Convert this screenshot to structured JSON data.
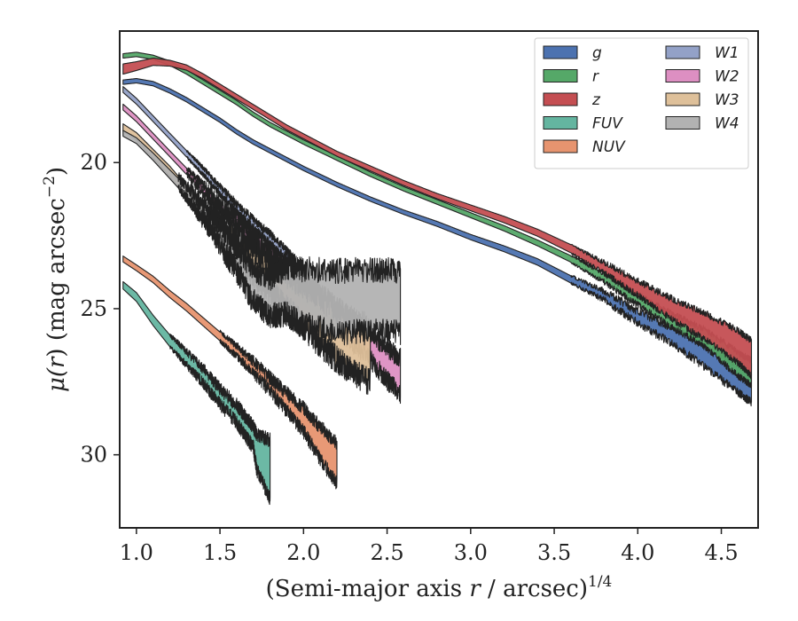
{
  "chart_data": {
    "type": "area",
    "xlabel": "(Semi-major axis r / arcsec)",
    "xlabel_main": "(Semi-major axis ",
    "xlabel_var": "r",
    "xlabel_rest": " / arcsec)",
    "xlabel_exp": "1/4",
    "ylabel_pre": "μ(",
    "ylabel_var": "r",
    "ylabel_post": ") (mag arcsec",
    "ylabel_exp": "−2",
    "ylabel_close": ")",
    "xlim": [
      0.9,
      4.72
    ],
    "ylim": [
      32.5,
      15.5
    ],
    "y_inverted": true,
    "xticks": [
      1.0,
      1.5,
      2.0,
      2.5,
      3.0,
      3.5,
      4.0,
      4.5
    ],
    "xtick_labels": [
      "1.0",
      "1.5",
      "2.0",
      "2.5",
      "3.0",
      "3.5",
      "4.0",
      "4.5"
    ],
    "yticks": [
      20,
      25,
      30
    ],
    "ytick_labels": [
      "20",
      "25",
      "30"
    ],
    "legend_position": "top-right",
    "legend_columns": 2,
    "series": [
      {
        "name": "g",
        "color": "#4c72b0",
        "noise": 0.15,
        "noise_start": 3.6,
        "x": [
          0.92,
          1.0,
          1.1,
          1.2,
          1.3,
          1.4,
          1.5,
          1.6,
          1.7,
          1.8,
          1.9,
          2.0,
          2.2,
          2.4,
          2.6,
          2.8,
          3.0,
          3.2,
          3.4,
          3.6,
          3.8,
          4.0,
          4.2,
          4.4,
          4.6,
          4.68
        ],
        "y": [
          17.25,
          17.2,
          17.3,
          17.55,
          17.85,
          18.2,
          18.55,
          18.95,
          19.3,
          19.6,
          19.9,
          20.2,
          20.75,
          21.25,
          21.7,
          22.1,
          22.55,
          22.95,
          23.4,
          24.0,
          24.55,
          25.3,
          25.9,
          26.6,
          27.4,
          27.7
        ],
        "w": [
          0.15,
          0.15,
          0.15,
          0.15,
          0.15,
          0.15,
          0.15,
          0.15,
          0.15,
          0.15,
          0.15,
          0.15,
          0.15,
          0.15,
          0.15,
          0.17,
          0.18,
          0.2,
          0.22,
          0.25,
          0.3,
          0.4,
          0.55,
          0.75,
          0.95,
          1.0
        ]
      },
      {
        "name": "r",
        "color": "#55a868",
        "noise": 0.12,
        "noise_start": 3.6,
        "x": [
          0.92,
          1.0,
          1.1,
          1.2,
          1.3,
          1.4,
          1.5,
          1.6,
          1.7,
          1.8,
          1.9,
          2.0,
          2.2,
          2.4,
          2.6,
          2.8,
          3.0,
          3.2,
          3.4,
          3.6,
          3.8,
          4.0,
          4.2,
          4.4,
          4.6,
          4.68
        ],
        "y": [
          16.35,
          16.3,
          16.4,
          16.6,
          16.9,
          17.25,
          17.6,
          17.95,
          18.35,
          18.7,
          19.0,
          19.3,
          19.85,
          20.4,
          20.9,
          21.35,
          21.8,
          22.25,
          22.75,
          23.3,
          23.95,
          24.7,
          25.4,
          26.0,
          26.9,
          27.2
        ],
        "w": [
          0.15,
          0.15,
          0.15,
          0.15,
          0.15,
          0.15,
          0.15,
          0.15,
          0.15,
          0.15,
          0.15,
          0.15,
          0.15,
          0.15,
          0.15,
          0.16,
          0.17,
          0.18,
          0.2,
          0.22,
          0.28,
          0.35,
          0.45,
          0.6,
          0.8,
          0.85
        ]
      },
      {
        "name": "z",
        "color": "#c44e52",
        "noise": 0.12,
        "noise_start": 3.6,
        "x": [
          0.92,
          1.0,
          1.1,
          1.2,
          1.3,
          1.4,
          1.5,
          1.6,
          1.7,
          1.8,
          1.9,
          2.0,
          2.2,
          2.4,
          2.6,
          2.8,
          3.0,
          3.2,
          3.4,
          3.6,
          3.8,
          4.0,
          4.2,
          4.4,
          4.6,
          4.68
        ],
        "y": [
          16.8,
          16.7,
          16.55,
          16.6,
          16.75,
          17.05,
          17.4,
          17.75,
          18.1,
          18.45,
          18.8,
          19.1,
          19.7,
          20.2,
          20.7,
          21.15,
          21.55,
          21.95,
          22.4,
          22.95,
          23.6,
          24.3,
          25.0,
          25.6,
          26.3,
          26.7
        ],
        "w": [
          0.35,
          0.3,
          0.25,
          0.2,
          0.18,
          0.17,
          0.17,
          0.17,
          0.17,
          0.17,
          0.17,
          0.17,
          0.17,
          0.17,
          0.17,
          0.18,
          0.2,
          0.22,
          0.24,
          0.28,
          0.35,
          0.5,
          0.7,
          0.9,
          1.1,
          1.2
        ]
      },
      {
        "name": "FUV",
        "color": "#64b5a0",
        "noise": 0.25,
        "noise_start": 1.2,
        "x": [
          0.92,
          1.0,
          1.1,
          1.2,
          1.3,
          1.4,
          1.5,
          1.6,
          1.65,
          1.7,
          1.72,
          1.8
        ],
        "y": [
          24.2,
          24.6,
          25.4,
          26.1,
          26.7,
          27.3,
          28.0,
          28.6,
          29.0,
          29.4,
          29.9,
          30.5
        ],
        "w": [
          0.25,
          0.3,
          0.35,
          0.4,
          0.45,
          0.5,
          0.55,
          0.6,
          0.65,
          0.7,
          1.2,
          2.0
        ]
      },
      {
        "name": "NUV",
        "color": "#e7946f",
        "noise": 0.25,
        "noise_start": 1.5,
        "x": [
          0.92,
          1.0,
          1.1,
          1.2,
          1.3,
          1.4,
          1.5,
          1.6,
          1.7,
          1.8,
          1.9,
          2.0,
          2.1,
          2.2
        ],
        "y": [
          23.3,
          23.6,
          24.0,
          24.5,
          24.95,
          25.45,
          25.95,
          26.45,
          27.0,
          27.6,
          28.2,
          28.8,
          29.6,
          30.3
        ],
        "w": [
          0.2,
          0.2,
          0.22,
          0.24,
          0.26,
          0.28,
          0.3,
          0.35,
          0.4,
          0.45,
          0.6,
          0.8,
          1.1,
          1.4
        ]
      },
      {
        "name": "W1",
        "color": "#93a1c7",
        "noise": 0.15,
        "noise_start": 1.3,
        "x": [
          0.92,
          1.0,
          1.1,
          1.2,
          1.3,
          1.4,
          1.5,
          1.6,
          1.7,
          1.8,
          1.9,
          1.95
        ],
        "y": [
          17.5,
          17.9,
          18.5,
          19.1,
          19.7,
          20.3,
          20.95,
          21.55,
          22.1,
          22.6,
          23.2,
          23.5
        ],
        "w": [
          0.2,
          0.2,
          0.2,
          0.2,
          0.22,
          0.24,
          0.26,
          0.28,
          0.3,
          0.32,
          0.35,
          0.4
        ]
      },
      {
        "name": "W2",
        "color": "#dd8fc2",
        "noise": 0.35,
        "noise_start": 1.3,
        "x": [
          0.92,
          1.0,
          1.1,
          1.2,
          1.3,
          1.4,
          1.5,
          1.6,
          1.7,
          1.8,
          1.9,
          2.0,
          2.2,
          2.4,
          2.5,
          2.58
        ],
        "y": [
          18.1,
          18.5,
          19.1,
          19.7,
          20.3,
          20.9,
          21.5,
          22.05,
          22.6,
          23.2,
          23.7,
          24.25,
          25.3,
          26.3,
          26.9,
          27.3
        ],
        "w": [
          0.2,
          0.2,
          0.2,
          0.2,
          0.22,
          0.24,
          0.26,
          0.3,
          0.35,
          0.4,
          0.5,
          0.6,
          0.75,
          0.9,
          1.1,
          1.2
        ]
      },
      {
        "name": "W3",
        "color": "#dec09a",
        "noise": 0.5,
        "noise_start": 1.25,
        "x": [
          0.92,
          1.0,
          1.1,
          1.2,
          1.3,
          1.4,
          1.5,
          1.6,
          1.7,
          1.8,
          1.9,
          2.0,
          2.1,
          2.2,
          2.3,
          2.4
        ],
        "y": [
          18.8,
          19.1,
          19.7,
          20.3,
          21.0,
          21.7,
          22.3,
          22.9,
          23.4,
          23.9,
          24.4,
          24.9,
          25.4,
          25.9,
          26.3,
          26.6
        ],
        "w": [
          0.25,
          0.25,
          0.3,
          0.35,
          0.4,
          0.5,
          0.6,
          0.7,
          0.8,
          1.0,
          1.2,
          1.4,
          1.6,
          1.7,
          1.8,
          1.9
        ]
      },
      {
        "name": "W4",
        "color": "#b2b2b2",
        "noise": 0.45,
        "noise_start": 1.25,
        "x": [
          0.92,
          1.0,
          1.1,
          1.2,
          1.3,
          1.4,
          1.5,
          1.6,
          1.7,
          1.8,
          1.9,
          2.0,
          2.2,
          2.4,
          2.58
        ],
        "y": [
          19.0,
          19.25,
          19.8,
          20.4,
          21.0,
          21.7,
          22.5,
          23.3,
          24.2,
          24.6,
          24.4,
          24.6,
          24.75,
          24.75,
          24.75
        ],
        "w": [
          0.2,
          0.2,
          0.25,
          0.3,
          0.35,
          0.45,
          0.6,
          0.85,
          1.1,
          1.3,
          1.6,
          1.9,
          2.1,
          2.1,
          2.1
        ]
      }
    ]
  }
}
